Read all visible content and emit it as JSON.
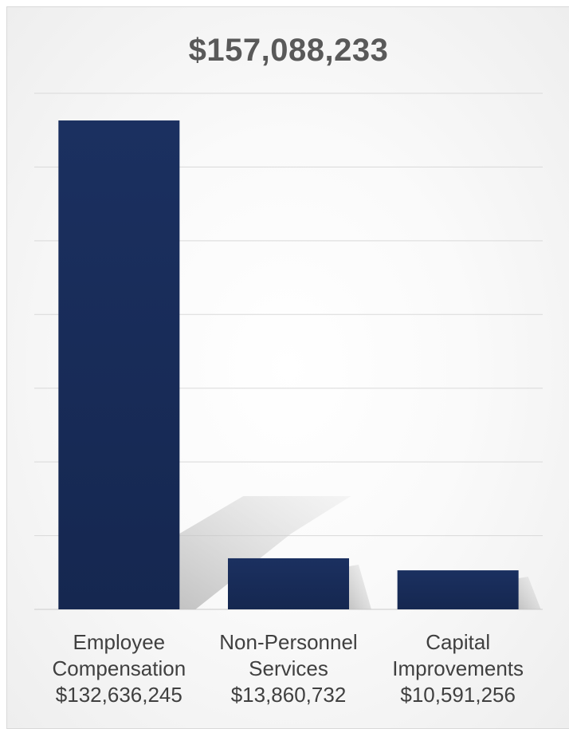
{
  "chart_data": {
    "type": "bar",
    "title": "$157,088,233",
    "categories": [
      {
        "line1": "Employee",
        "line2": "Compensation",
        "value_label": "$132,636,245"
      },
      {
        "line1": "Non-Personnel",
        "line2": "Services",
        "value_label": "$13,860,732"
      },
      {
        "line1": "Capital",
        "line2": "Improvements",
        "value_label": "$10,591,256"
      }
    ],
    "values": [
      132636245,
      13860732,
      10591256
    ],
    "ylim": [
      0,
      140000000
    ],
    "grid": true,
    "legend": false,
    "bar_color": "#1a2f5e",
    "grid_color": "#d9d9d9"
  }
}
